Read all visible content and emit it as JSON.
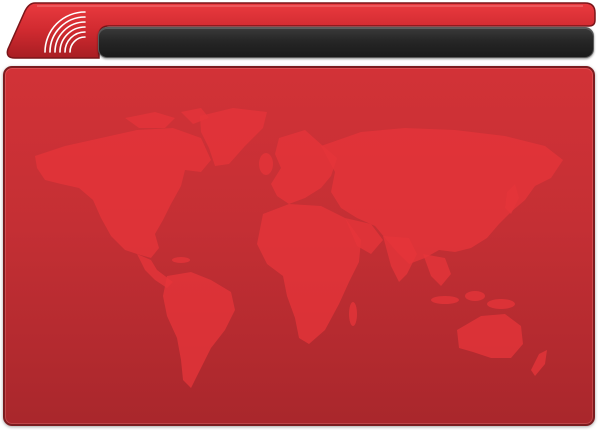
{
  "header": {
    "title": "",
    "logo_icon": "concentric-arcs-logo-icon"
  },
  "colors": {
    "header_red": "#c8252b",
    "panel_red": "#c42f34",
    "map_red": "#e6343a",
    "title_bar": "#262626"
  },
  "main": {
    "background_icon": "world-map-icon"
  }
}
